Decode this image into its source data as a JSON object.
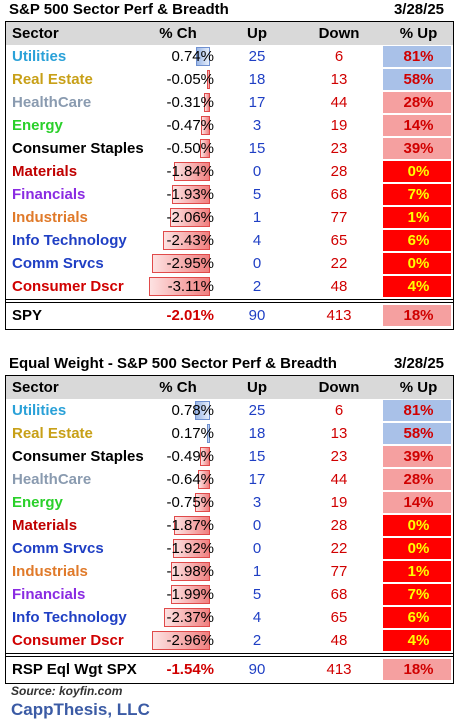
{
  "colors": {
    "header_bg": "#d9d9d9",
    "up_text": "#1f3fc4",
    "down_text": "#d00000",
    "pct_up_blue": "#a9c1e8",
    "pct_up_pink": "#f5a0a0",
    "pct_up_red": "#ff0000",
    "sector_colors": {
      "Utilities": "#2aa1d8",
      "Real Estate": "#c8a018",
      "HealthCare": "#8a9bb0",
      "Energy": "#2ad02a",
      "Consumer Staples": "#000000",
      "Materials": "#c00000",
      "Financials": "#8a2be2",
      "Industrials": "#e07a2a",
      "Info Technology": "#1f3fc4",
      "Comm Srvcs": "#1f3fc4",
      "Consumer Dscr": "#d00000"
    }
  },
  "chart_data": [
    {
      "type": "table",
      "title": "S&P 500 Sector Perf & Breadth",
      "date": "3/28/25",
      "columns": [
        "Sector",
        "% Ch",
        "Up",
        "Down",
        "% Up"
      ],
      "rows": [
        {
          "sector": "Utilities",
          "pct_ch": "0.74%",
          "pct_ch_value": 0.74,
          "up": "25",
          "down": "6",
          "pct_up": "81%",
          "pct_up_tier": "blue"
        },
        {
          "sector": "Real Estate",
          "pct_ch": "-0.05%",
          "pct_ch_value": -0.05,
          "up": "18",
          "down": "13",
          "pct_up": "58%",
          "pct_up_tier": "blue"
        },
        {
          "sector": "HealthCare",
          "pct_ch": "-0.31%",
          "pct_ch_value": -0.31,
          "up": "17",
          "down": "44",
          "pct_up": "28%",
          "pct_up_tier": "pink"
        },
        {
          "sector": "Energy",
          "pct_ch": "-0.47%",
          "pct_ch_value": -0.47,
          "up": "3",
          "down": "19",
          "pct_up": "14%",
          "pct_up_tier": "pink"
        },
        {
          "sector": "Consumer Staples",
          "pct_ch": "-0.50%",
          "pct_ch_value": -0.5,
          "up": "15",
          "down": "23",
          "pct_up": "39%",
          "pct_up_tier": "pink"
        },
        {
          "sector": "Materials",
          "pct_ch": "-1.84%",
          "pct_ch_value": -1.84,
          "up": "0",
          "down": "28",
          "pct_up": "0%",
          "pct_up_tier": "red"
        },
        {
          "sector": "Financials",
          "pct_ch": "-1.93%",
          "pct_ch_value": -1.93,
          "up": "5",
          "down": "68",
          "pct_up": "7%",
          "pct_up_tier": "red"
        },
        {
          "sector": "Industrials",
          "pct_ch": "-2.06%",
          "pct_ch_value": -2.06,
          "up": "1",
          "down": "77",
          "pct_up": "1%",
          "pct_up_tier": "red"
        },
        {
          "sector": "Info Technology",
          "pct_ch": "-2.43%",
          "pct_ch_value": -2.43,
          "up": "4",
          "down": "65",
          "pct_up": "6%",
          "pct_up_tier": "red"
        },
        {
          "sector": "Comm Srvcs",
          "pct_ch": "-2.95%",
          "pct_ch_value": -2.95,
          "up": "0",
          "down": "22",
          "pct_up": "0%",
          "pct_up_tier": "red"
        },
        {
          "sector": "Consumer Dscr",
          "pct_ch": "-3.11%",
          "pct_ch_value": -3.11,
          "up": "2",
          "down": "48",
          "pct_up": "4%",
          "pct_up_tier": "red"
        }
      ],
      "total": {
        "sector": "SPY",
        "pct_ch": "-2.01%",
        "up": "90",
        "down": "413",
        "pct_up": "18%",
        "pct_up_tier": "pink"
      }
    },
    {
      "type": "table",
      "title": "Equal Weight - S&P 500 Sector Perf & Breadth",
      "date": "3/28/25",
      "columns": [
        "Sector",
        "% Ch",
        "Up",
        "Down",
        "% Up"
      ],
      "rows": [
        {
          "sector": "Utilities",
          "pct_ch": "0.78%",
          "pct_ch_value": 0.78,
          "up": "25",
          "down": "6",
          "pct_up": "81%",
          "pct_up_tier": "blue"
        },
        {
          "sector": "Real Estate",
          "pct_ch": "0.17%",
          "pct_ch_value": 0.17,
          "up": "18",
          "down": "13",
          "pct_up": "58%",
          "pct_up_tier": "blue"
        },
        {
          "sector": "Consumer Staples",
          "pct_ch": "-0.49%",
          "pct_ch_value": -0.49,
          "up": "15",
          "down": "23",
          "pct_up": "39%",
          "pct_up_tier": "pink"
        },
        {
          "sector": "HealthCare",
          "pct_ch": "-0.64%",
          "pct_ch_value": -0.64,
          "up": "17",
          "down": "44",
          "pct_up": "28%",
          "pct_up_tier": "pink"
        },
        {
          "sector": "Energy",
          "pct_ch": "-0.75%",
          "pct_ch_value": -0.75,
          "up": "3",
          "down": "19",
          "pct_up": "14%",
          "pct_up_tier": "pink"
        },
        {
          "sector": "Materials",
          "pct_ch": "-1.87%",
          "pct_ch_value": -1.87,
          "up": "0",
          "down": "28",
          "pct_up": "0%",
          "pct_up_tier": "red"
        },
        {
          "sector": "Comm Srvcs",
          "pct_ch": "-1.92%",
          "pct_ch_value": -1.92,
          "up": "0",
          "down": "22",
          "pct_up": "0%",
          "pct_up_tier": "red"
        },
        {
          "sector": "Industrials",
          "pct_ch": "-1.98%",
          "pct_ch_value": -1.98,
          "up": "1",
          "down": "77",
          "pct_up": "1%",
          "pct_up_tier": "red"
        },
        {
          "sector": "Financials",
          "pct_ch": "-1.99%",
          "pct_ch_value": -1.99,
          "up": "5",
          "down": "68",
          "pct_up": "7%",
          "pct_up_tier": "red"
        },
        {
          "sector": "Info Technology",
          "pct_ch": "-2.37%",
          "pct_ch_value": -2.37,
          "up": "4",
          "down": "65",
          "pct_up": "6%",
          "pct_up_tier": "red"
        },
        {
          "sector": "Consumer Dscr",
          "pct_ch": "-2.96%",
          "pct_ch_value": -2.96,
          "up": "2",
          "down": "48",
          "pct_up": "4%",
          "pct_up_tier": "red"
        }
      ],
      "total": {
        "sector": "RSP Eql Wgt SPX",
        "pct_ch": "-1.54%",
        "up": "90",
        "down": "413",
        "pct_up": "18%",
        "pct_up_tier": "pink"
      }
    }
  ],
  "footer": {
    "source": "Source: koyfin.com",
    "brand": "CappThesis, LLC"
  }
}
